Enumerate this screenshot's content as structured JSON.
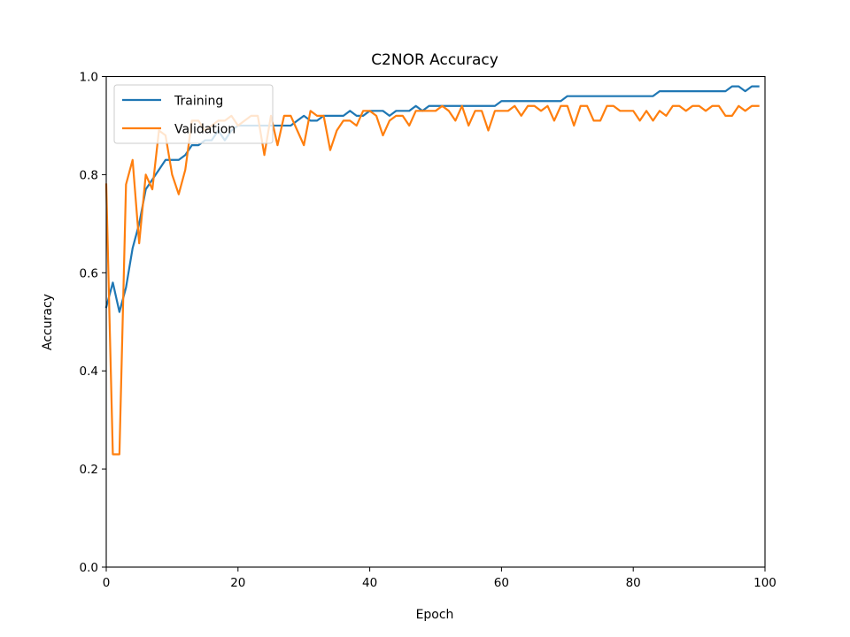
{
  "chart_data": {
    "type": "line",
    "title": "C2NOR Accuracy",
    "xlabel": "Epoch",
    "ylabel": "Accuracy",
    "xlim": [
      0,
      100
    ],
    "ylim": [
      0,
      1.0
    ],
    "xticks": [
      0,
      20,
      40,
      60,
      80,
      100
    ],
    "yticks": [
      0.0,
      0.2,
      0.4,
      0.6,
      0.8,
      1.0
    ],
    "xtick_labels": [
      "0",
      "20",
      "40",
      "60",
      "80",
      "100"
    ],
    "ytick_labels": [
      "0.0",
      "0.2",
      "0.4",
      "0.6",
      "0.8",
      "1.0"
    ],
    "grid": false,
    "legend_position": "top-left",
    "series": [
      {
        "name": "Training",
        "color": "#1f77b4",
        "x": [
          0,
          1,
          2,
          3,
          4,
          5,
          6,
          7,
          8,
          9,
          10,
          11,
          12,
          13,
          14,
          15,
          16,
          17,
          18,
          19,
          20,
          21,
          22,
          23,
          24,
          25,
          26,
          27,
          28,
          29,
          30,
          31,
          32,
          33,
          34,
          35,
          36,
          37,
          38,
          39,
          40,
          41,
          42,
          43,
          44,
          45,
          46,
          47,
          48,
          49,
          50,
          51,
          52,
          53,
          54,
          55,
          56,
          57,
          58,
          59,
          60,
          61,
          62,
          63,
          64,
          65,
          66,
          67,
          68,
          69,
          70,
          71,
          72,
          73,
          74,
          75,
          76,
          77,
          78,
          79,
          80,
          81,
          82,
          83,
          84,
          85,
          86,
          87,
          88,
          89,
          90,
          91,
          92,
          93,
          94,
          95,
          96,
          97,
          98,
          99
        ],
        "values": [
          0.53,
          0.58,
          0.52,
          0.57,
          0.65,
          0.7,
          0.77,
          0.79,
          0.81,
          0.83,
          0.83,
          0.83,
          0.84,
          0.86,
          0.86,
          0.87,
          0.87,
          0.89,
          0.87,
          0.89,
          0.9,
          0.9,
          0.9,
          0.9,
          0.9,
          0.9,
          0.9,
          0.9,
          0.9,
          0.91,
          0.92,
          0.91,
          0.91,
          0.92,
          0.92,
          0.92,
          0.92,
          0.93,
          0.92,
          0.92,
          0.93,
          0.93,
          0.93,
          0.92,
          0.93,
          0.93,
          0.93,
          0.94,
          0.93,
          0.94,
          0.94,
          0.94,
          0.94,
          0.94,
          0.94,
          0.94,
          0.94,
          0.94,
          0.94,
          0.94,
          0.95,
          0.95,
          0.95,
          0.95,
          0.95,
          0.95,
          0.95,
          0.95,
          0.95,
          0.95,
          0.96,
          0.96,
          0.96,
          0.96,
          0.96,
          0.96,
          0.96,
          0.96,
          0.96,
          0.96,
          0.96,
          0.96,
          0.96,
          0.96,
          0.97,
          0.97,
          0.97,
          0.97,
          0.97,
          0.97,
          0.97,
          0.97,
          0.97,
          0.97,
          0.97,
          0.98,
          0.98,
          0.97,
          0.98,
          0.98
        ]
      },
      {
        "name": "Validation",
        "color": "#ff7f0e",
        "x": [
          0,
          1,
          2,
          3,
          4,
          5,
          6,
          7,
          8,
          9,
          10,
          11,
          12,
          13,
          14,
          15,
          16,
          17,
          18,
          19,
          20,
          21,
          22,
          23,
          24,
          25,
          26,
          27,
          28,
          29,
          30,
          31,
          32,
          33,
          34,
          35,
          36,
          37,
          38,
          39,
          40,
          41,
          42,
          43,
          44,
          45,
          46,
          47,
          48,
          49,
          50,
          51,
          52,
          53,
          54,
          55,
          56,
          57,
          58,
          59,
          60,
          61,
          62,
          63,
          64,
          65,
          66,
          67,
          68,
          69,
          70,
          71,
          72,
          73,
          74,
          75,
          76,
          77,
          78,
          79,
          80,
          81,
          82,
          83,
          84,
          85,
          86,
          87,
          88,
          89,
          90,
          91,
          92,
          93,
          94,
          95,
          96,
          97,
          98,
          99
        ],
        "values": [
          0.78,
          0.23,
          0.23,
          0.78,
          0.83,
          0.66,
          0.8,
          0.77,
          0.89,
          0.88,
          0.8,
          0.76,
          0.81,
          0.91,
          0.91,
          0.89,
          0.9,
          0.91,
          0.91,
          0.92,
          0.9,
          0.91,
          0.92,
          0.92,
          0.84,
          0.92,
          0.86,
          0.92,
          0.92,
          0.89,
          0.86,
          0.93,
          0.92,
          0.92,
          0.85,
          0.89,
          0.91,
          0.91,
          0.9,
          0.93,
          0.93,
          0.92,
          0.88,
          0.91,
          0.92,
          0.92,
          0.9,
          0.93,
          0.93,
          0.93,
          0.93,
          0.94,
          0.93,
          0.91,
          0.94,
          0.9,
          0.93,
          0.93,
          0.89,
          0.93,
          0.93,
          0.93,
          0.94,
          0.92,
          0.94,
          0.94,
          0.93,
          0.94,
          0.91,
          0.94,
          0.94,
          0.9,
          0.94,
          0.94,
          0.91,
          0.91,
          0.94,
          0.94,
          0.93,
          0.93,
          0.93,
          0.91,
          0.93,
          0.91,
          0.93,
          0.92,
          0.94,
          0.94,
          0.93,
          0.94,
          0.94,
          0.93,
          0.94,
          0.94,
          0.92,
          0.92,
          0.94,
          0.93,
          0.94,
          0.94
        ]
      }
    ]
  }
}
